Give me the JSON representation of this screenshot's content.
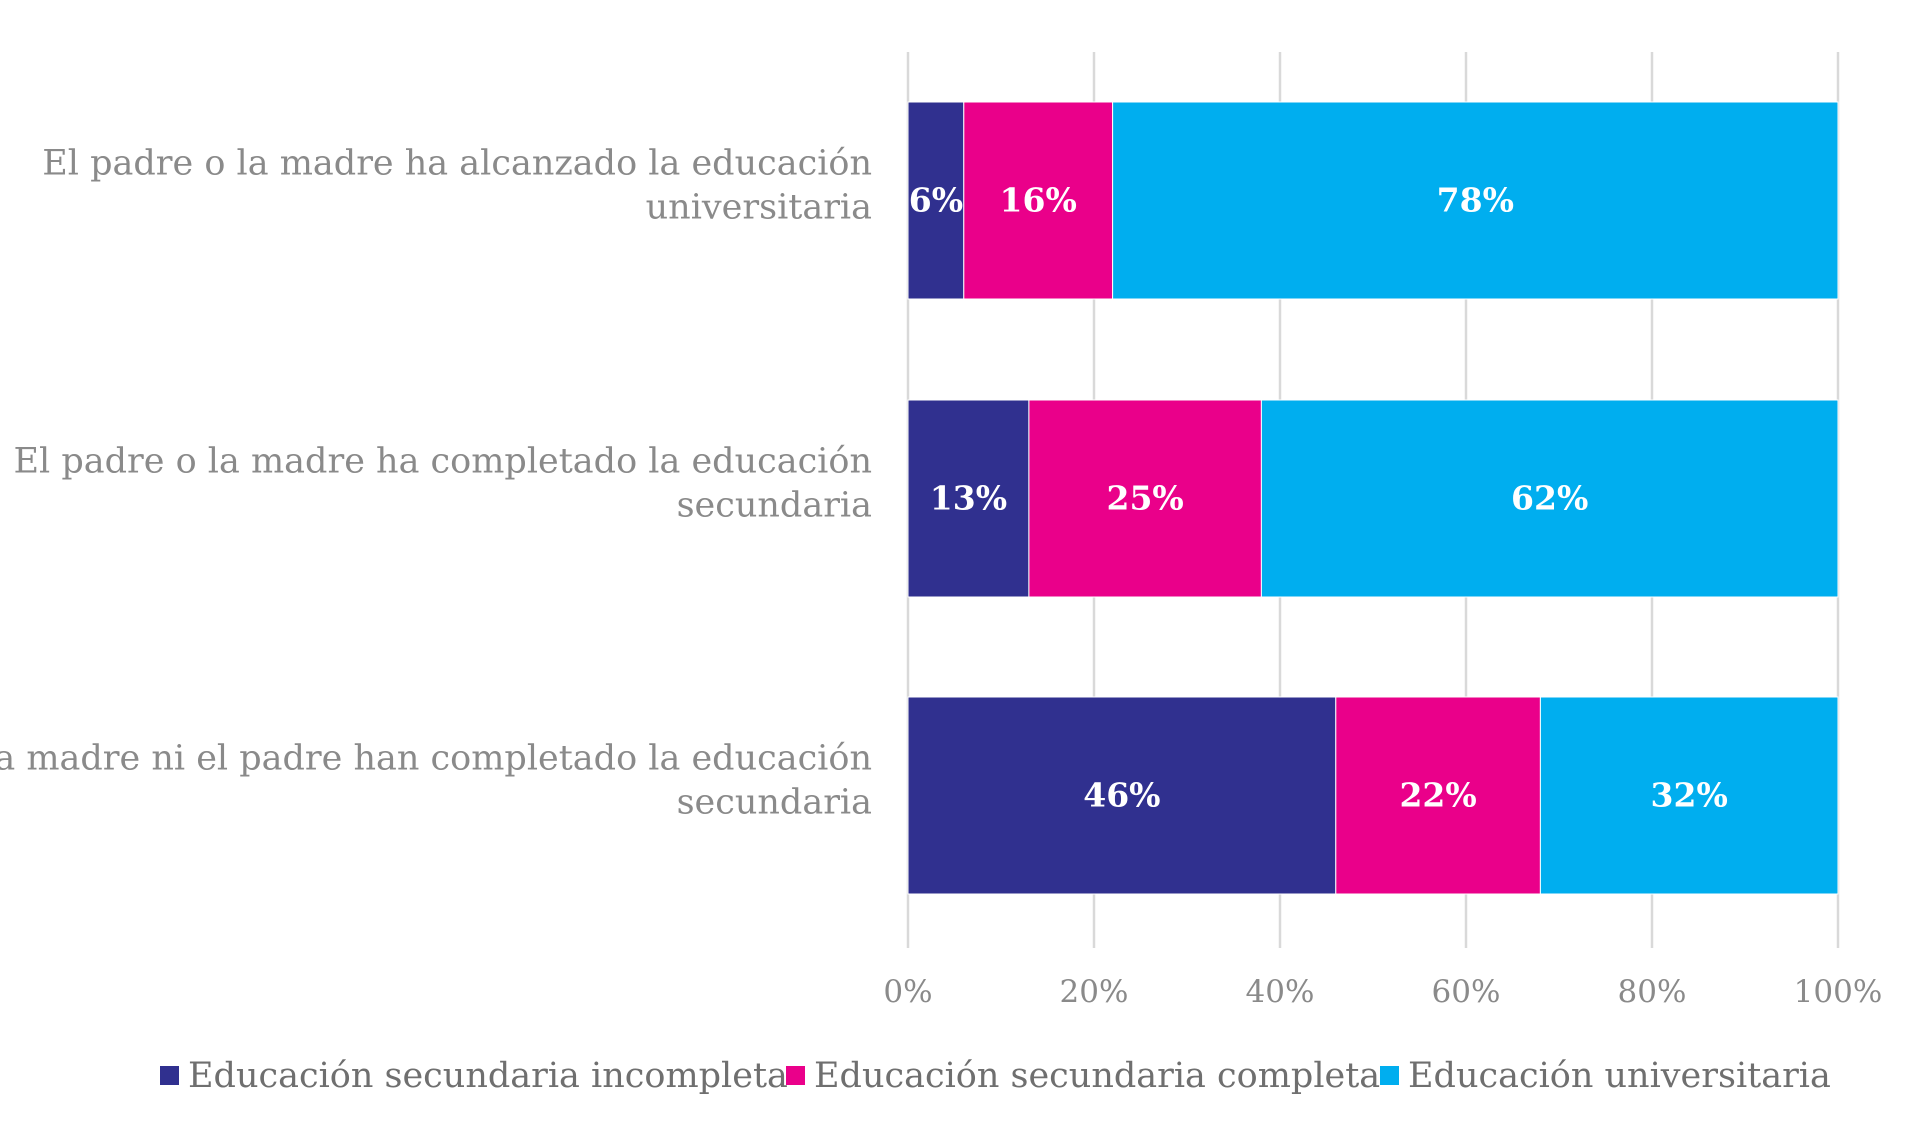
{
  "chart_data": {
    "type": "bar",
    "orientation": "horizontal",
    "stacked": "percent",
    "categories": [
      [
        "El padre o la madre ha alcanzado la educación",
        "universitaria"
      ],
      [
        "El padre o la madre ha completado la educación",
        "secundaria"
      ],
      [
        "Ni la madre ni el padre han completado la educación",
        "secundaria"
      ]
    ],
    "series": [
      {
        "name": "Educación secundaria incompleta",
        "color": "#30308f",
        "values": [
          6,
          13,
          46
        ],
        "labels": [
          "6%",
          "13%",
          "46%"
        ]
      },
      {
        "name": "Educación secundaria completa",
        "color": "#ea008a",
        "values": [
          16,
          25,
          22
        ],
        "labels": [
          "16%",
          "25%",
          "22%"
        ]
      },
      {
        "name": "Educación universitaria",
        "color": "#00aeef",
        "values": [
          78,
          62,
          32
        ],
        "labels": [
          "78%",
          "62%",
          "32%"
        ]
      }
    ],
    "xlim": [
      0,
      100
    ],
    "xticks": [
      0,
      20,
      40,
      60,
      80,
      100
    ],
    "xtick_labels": [
      "0%",
      "20%",
      "40%",
      "60%",
      "80%",
      "100%"
    ],
    "grid": "vertical",
    "legend_position": "bottom"
  }
}
